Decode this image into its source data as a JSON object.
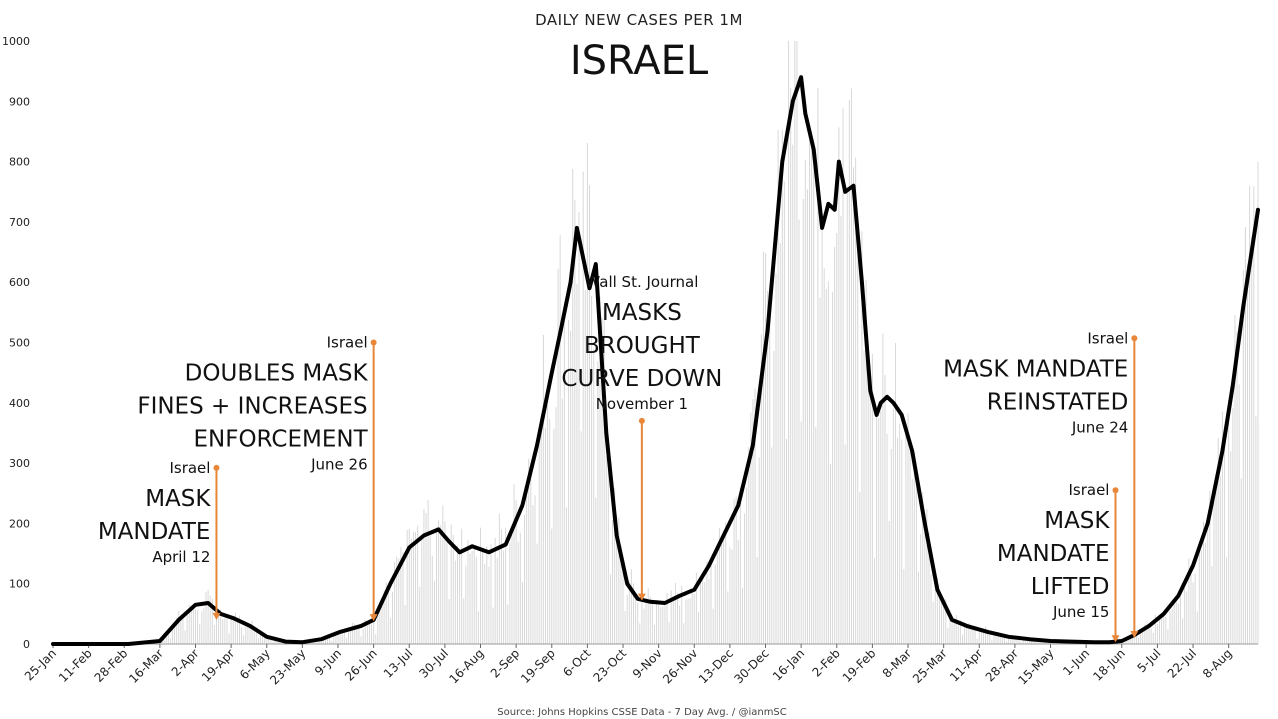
{
  "chart_data": {
    "type": "line",
    "subtitle": "DAILY NEW CASES PER 1M",
    "title": "ISRAEL",
    "source": "Source: Johns Hopkins CSSE Data - 7 Day Avg. / @ianmSC",
    "ylim": [
      0,
      1000
    ],
    "yticks": [
      0,
      100,
      200,
      300,
      400,
      500,
      600,
      700,
      800,
      900,
      1000
    ],
    "x_start": "2020-01-25",
    "x_end": "2021-08-22",
    "xtick_labels": [
      "25-Jan",
      "11-Feb",
      "28-Feb",
      "16-Mar",
      "2-Apr",
      "19-Apr",
      "6-May",
      "23-May",
      "9-Jun",
      "26-Jun",
      "13-Jul",
      "30-Jul",
      "16-Aug",
      "2-Sep",
      "19-Sep",
      "6-Oct",
      "23-Oct",
      "9-Nov",
      "26-Nov",
      "13-Dec",
      "30-Dec",
      "16-Jan",
      "2-Feb",
      "19-Feb",
      "8-Mar",
      "25-Mar",
      "11-Apr",
      "28-Apr",
      "15-May",
      "1-Jun",
      "18-Jun",
      "5-Jul",
      "22-Jul",
      "8-Aug"
    ],
    "grid": false,
    "legend": "none",
    "series": [
      {
        "line_color": "#000000",
        "bar_color": "#d8d8d8",
        "x": [
          "2020-01-25",
          "2020-03-01",
          "2020-03-16",
          "2020-03-25",
          "2020-04-02",
          "2020-04-08",
          "2020-04-14",
          "2020-04-20",
          "2020-04-28",
          "2020-05-06",
          "2020-05-15",
          "2020-05-23",
          "2020-06-01",
          "2020-06-10",
          "2020-06-20",
          "2020-06-26",
          "2020-07-04",
          "2020-07-13",
          "2020-07-20",
          "2020-07-27",
          "2020-08-01",
          "2020-08-06",
          "2020-08-12",
          "2020-08-20",
          "2020-08-28",
          "2020-09-05",
          "2020-09-12",
          "2020-09-19",
          "2020-09-23",
          "2020-09-28",
          "2020-10-01",
          "2020-10-04",
          "2020-10-07",
          "2020-10-10",
          "2020-10-15",
          "2020-10-20",
          "2020-10-25",
          "2020-10-30",
          "2020-11-05",
          "2020-11-12",
          "2020-11-19",
          "2020-11-26",
          "2020-12-03",
          "2020-12-10",
          "2020-12-17",
          "2020-12-24",
          "2020-12-31",
          "2021-01-07",
          "2021-01-12",
          "2021-01-16",
          "2021-01-18",
          "2021-01-22",
          "2021-01-26",
          "2021-01-29",
          "2021-02-01",
          "2021-02-03",
          "2021-02-06",
          "2021-02-10",
          "2021-02-14",
          "2021-02-18",
          "2021-02-21",
          "2021-02-23",
          "2021-02-26",
          "2021-03-01",
          "2021-03-05",
          "2021-03-10",
          "2021-03-16",
          "2021-03-22",
          "2021-03-29",
          "2021-04-05",
          "2021-04-15",
          "2021-04-25",
          "2021-05-05",
          "2021-05-15",
          "2021-05-25",
          "2021-06-05",
          "2021-06-12",
          "2021-06-18",
          "2021-06-24",
          "2021-07-01",
          "2021-07-08",
          "2021-07-15",
          "2021-07-22",
          "2021-07-29",
          "2021-08-05",
          "2021-08-10",
          "2021-08-15",
          "2021-08-22"
        ],
        "y": [
          0,
          0,
          5,
          40,
          65,
          68,
          50,
          43,
          30,
          12,
          4,
          3,
          8,
          20,
          30,
          40,
          100,
          160,
          180,
          190,
          170,
          152,
          162,
          152,
          165,
          230,
          330,
          450,
          515,
          600,
          690,
          640,
          590,
          630,
          350,
          180,
          100,
          75,
          70,
          68,
          80,
          90,
          130,
          180,
          230,
          330,
          520,
          800,
          900,
          940,
          880,
          820,
          690,
          730,
          720,
          800,
          750,
          760,
          600,
          420,
          380,
          400,
          410,
          400,
          380,
          320,
          200,
          90,
          40,
          30,
          20,
          12,
          8,
          5,
          4,
          3,
          3,
          5,
          15,
          30,
          50,
          80,
          130,
          200,
          320,
          430,
          560,
          720
        ]
      }
    ],
    "annotations": [
      {
        "source_label": "Israel",
        "lines": [
          "MASK",
          "MANDATE"
        ],
        "date_label": "April 12",
        "date": "2020-04-12",
        "top_value": 292,
        "bottom_value": 40
      },
      {
        "source_label": "Israel",
        "lines": [
          "DOUBLES MASK",
          "FINES + INCREASES",
          "ENFORCEMENT"
        ],
        "date_label": "June 26",
        "date": "2020-06-26",
        "top_value": 500,
        "bottom_value": 38
      },
      {
        "source_label": "Wall St. Journal",
        "lines": [
          "MASKS",
          "BROUGHT",
          "CURVE DOWN"
        ],
        "date_label": "November 1",
        "date": "2020-11-01",
        "top_value": 370,
        "bottom_value": 72
      },
      {
        "source_label": "Israel",
        "lines": [
          "MASK MANDATE",
          "REINSTATED"
        ],
        "date_label": "June 24",
        "date": "2021-06-24",
        "top_value": 507,
        "bottom_value": 10
      },
      {
        "source_label": "Israel",
        "lines": [
          "MASK",
          "MANDATE",
          "LIFTED"
        ],
        "date_label": "June 15",
        "date": "2021-06-15",
        "top_value": 255,
        "bottom_value": 3
      }
    ],
    "annotation_color": "#e8863a"
  }
}
